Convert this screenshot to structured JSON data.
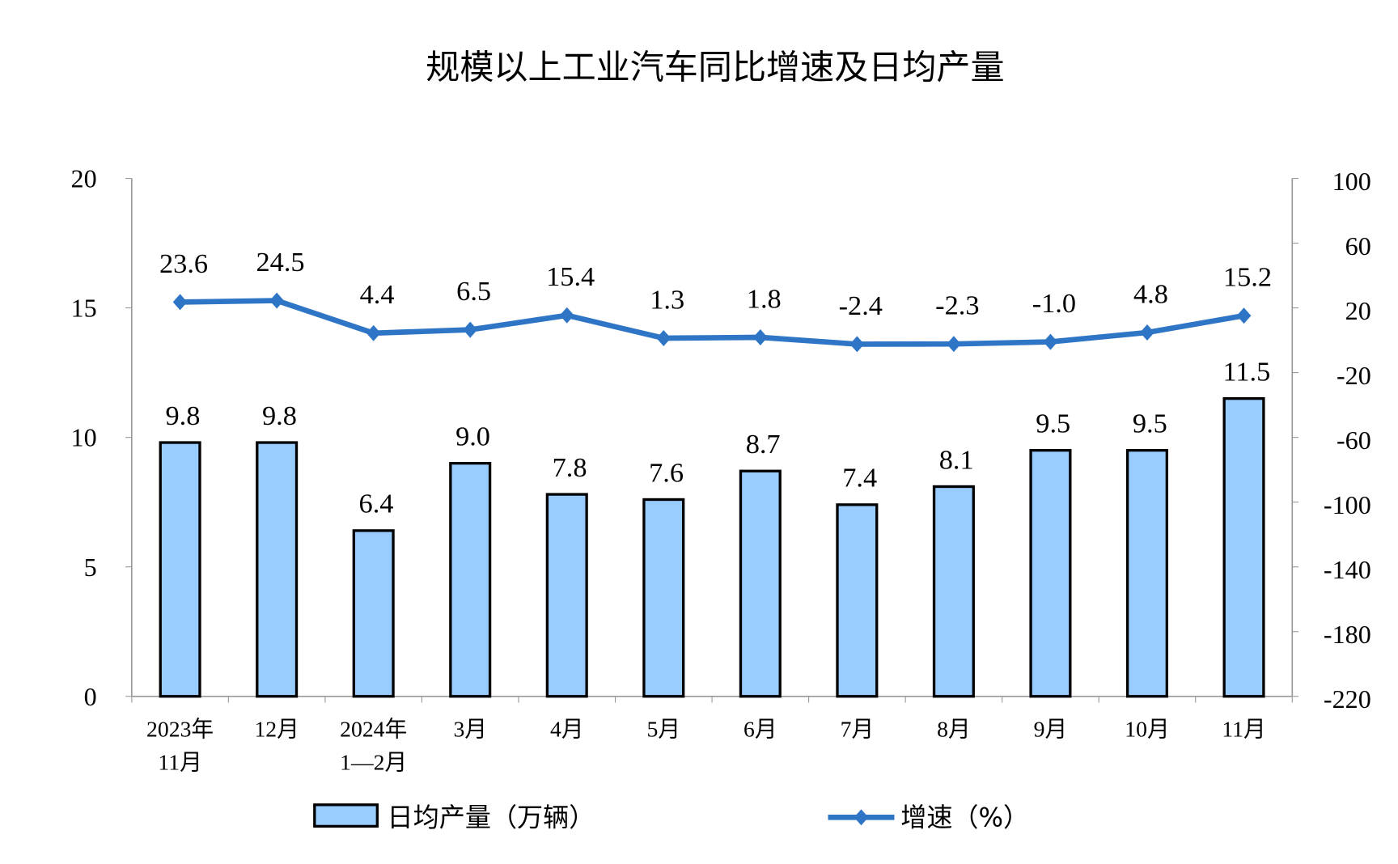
{
  "chart_data": {
    "type": "bar+line",
    "title": "规模以上工业汽车同比增速及日均产量",
    "categories": [
      [
        "2023年",
        "11月"
      ],
      [
        "12月"
      ],
      [
        "2024年",
        "1—2月"
      ],
      [
        "3月"
      ],
      [
        "4月"
      ],
      [
        "5月"
      ],
      [
        "6月"
      ],
      [
        "7月"
      ],
      [
        "8月"
      ],
      [
        "9月"
      ],
      [
        "10月"
      ],
      [
        "11月"
      ]
    ],
    "series": [
      {
        "name": "日均产量（万辆）",
        "type": "bar",
        "axis": "left",
        "color": "#99CCFF",
        "values": [
          9.8,
          9.8,
          6.4,
          9.0,
          7.8,
          7.6,
          8.7,
          7.4,
          8.1,
          9.5,
          9.5,
          11.5
        ],
        "labels": [
          "9.8",
          "9.8",
          "6.4",
          "9.0",
          "7.8",
          "7.6",
          "8.7",
          "7.4",
          "8.1",
          "9.5",
          "9.5",
          "11.5"
        ]
      },
      {
        "name": "增速（%）",
        "type": "line",
        "axis": "right",
        "color": "#2E75C6",
        "marker": "diamond",
        "values": [
          23.6,
          24.5,
          4.4,
          6.5,
          15.4,
          1.3,
          1.8,
          -2.4,
          -2.3,
          -1.0,
          4.8,
          15.2
        ],
        "labels": [
          "23.6",
          "24.5",
          "4.4",
          "6.5",
          "15.4",
          "1.3",
          "1.8",
          "-2.4",
          "-2.3",
          "-1.0",
          "4.8",
          "15.2"
        ]
      }
    ],
    "left_axis": {
      "ylim": [
        0,
        20
      ],
      "ticks": [
        "0",
        "5",
        "10",
        "15",
        "20"
      ]
    },
    "right_axis": {
      "ylim": [
        -220,
        100
      ],
      "ticks": [
        "-220",
        "-180",
        "-140",
        "-100",
        "-60",
        "-20",
        "20",
        "60",
        "100"
      ]
    },
    "grid": false,
    "legend": "bottom"
  }
}
